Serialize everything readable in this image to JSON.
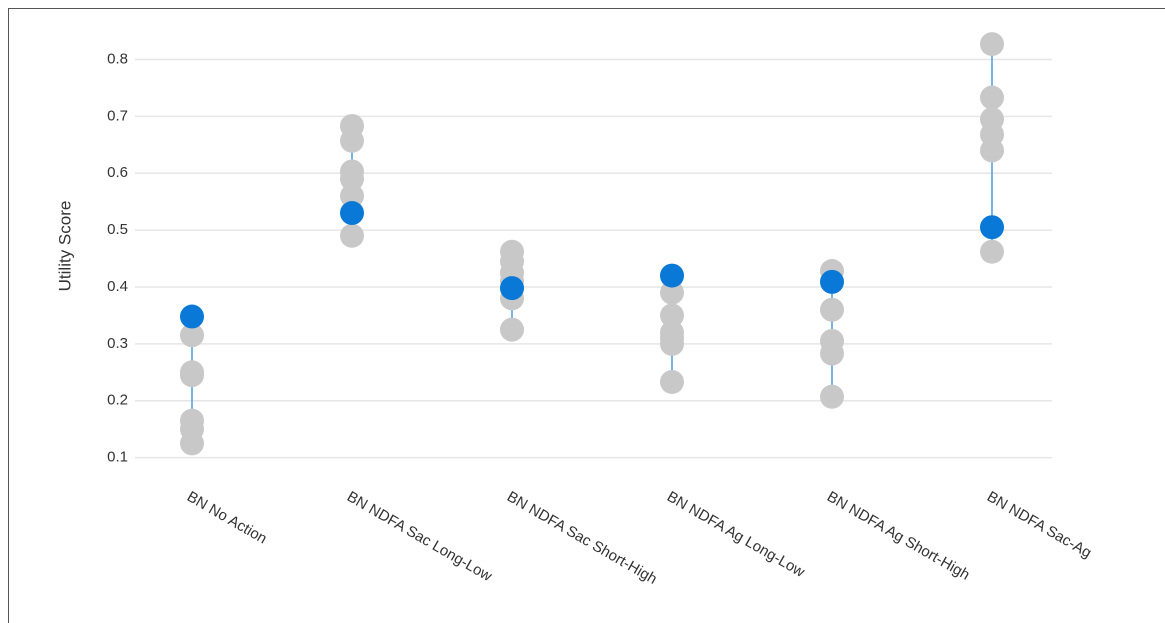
{
  "chart_data": {
    "type": "strip",
    "y_label": "Utility Score",
    "categories": [
      "BN No Action",
      "BN NDFA Sac Long-Low",
      "BN NDFA Sac Short-High",
      "BN NDFA Ag Long-Low",
      "BN NDFA Ag Short-High",
      "BN NDFA Sac-Ag"
    ],
    "series": [
      {
        "color": "#c8c8c8",
        "values": [
          [
            0.315,
            0.25,
            0.245,
            0.165,
            0.15,
            0.125
          ],
          [
            0.683,
            0.657,
            0.603,
            0.59,
            0.56,
            0.49
          ],
          [
            0.462,
            0.445,
            0.425,
            0.41,
            0.38,
            0.325
          ],
          [
            0.39,
            0.35,
            0.32,
            0.31,
            0.3,
            0.233
          ],
          [
            0.428,
            0.36,
            0.305,
            0.283,
            0.207
          ],
          [
            0.827,
            0.733,
            0.695,
            0.668,
            0.64,
            0.462
          ]
        ]
      },
      {
        "color": "#0a78d6",
        "values": [
          0.348,
          0.53,
          0.398,
          0.42,
          0.409,
          0.505
        ]
      }
    ],
    "range_line_color": "#4a9be0",
    "ylim": [
      0.08,
      0.85
    ],
    "yticks": [
      0.1,
      0.2,
      0.3,
      0.4,
      0.5,
      0.6,
      0.7,
      0.8
    ],
    "grid": true
  }
}
